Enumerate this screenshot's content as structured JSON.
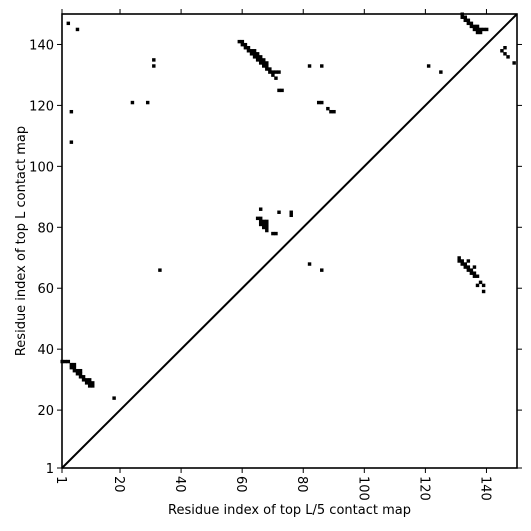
{
  "chart_data": {
    "type": "heatmap",
    "xlabel": "Residue index of top L/5 contact map",
    "ylabel": "Residue index of top L contact map",
    "xlim": [
      1,
      150
    ],
    "ylim": [
      1,
      150
    ],
    "x_ticks": [
      1,
      20,
      40,
      60,
      80,
      100,
      120,
      140
    ],
    "y_ticks": [
      1,
      20,
      40,
      60,
      80,
      100,
      120,
      140
    ],
    "diagonal": true,
    "grid": false,
    "colors": {
      "contact": "#000000",
      "background": "#ffffff",
      "frame": "#000000"
    },
    "contacts": [
      [
        1,
        36
      ],
      [
        2,
        36
      ],
      [
        3,
        36
      ],
      [
        4,
        35
      ],
      [
        4,
        34
      ],
      [
        5,
        35
      ],
      [
        5,
        34
      ],
      [
        5,
        33
      ],
      [
        6,
        33
      ],
      [
        6,
        32
      ],
      [
        7,
        33
      ],
      [
        7,
        32
      ],
      [
        7,
        31
      ],
      [
        8,
        31
      ],
      [
        8,
        30
      ],
      [
        9,
        30
      ],
      [
        9,
        29
      ],
      [
        10,
        30
      ],
      [
        10,
        29
      ],
      [
        10,
        28
      ],
      [
        11,
        29
      ],
      [
        11,
        28
      ],
      [
        3,
        147
      ],
      [
        4,
        118
      ],
      [
        4,
        108
      ],
      [
        6,
        145
      ],
      [
        18,
        24
      ],
      [
        24,
        121
      ],
      [
        29,
        121
      ],
      [
        31,
        135
      ],
      [
        31,
        133
      ],
      [
        33,
        66
      ],
      [
        59,
        141
      ],
      [
        60,
        141
      ],
      [
        60,
        140
      ],
      [
        61,
        140
      ],
      [
        61,
        139
      ],
      [
        62,
        139
      ],
      [
        62,
        138
      ],
      [
        63,
        138
      ],
      [
        63,
        137
      ],
      [
        64,
        138
      ],
      [
        64,
        137
      ],
      [
        64,
        136
      ],
      [
        65,
        137
      ],
      [
        65,
        136
      ],
      [
        65,
        135
      ],
      [
        66,
        136
      ],
      [
        66,
        135
      ],
      [
        66,
        134
      ],
      [
        67,
        135
      ],
      [
        67,
        134
      ],
      [
        67,
        133
      ],
      [
        68,
        134
      ],
      [
        68,
        133
      ],
      [
        68,
        132
      ],
      [
        69,
        132
      ],
      [
        69,
        131
      ],
      [
        70,
        131
      ],
      [
        70,
        130
      ],
      [
        71,
        131
      ],
      [
        71,
        129
      ],
      [
        72,
        131
      ],
      [
        72,
        125
      ],
      [
        73,
        125
      ],
      [
        65,
        83
      ],
      [
        66,
        83
      ],
      [
        66,
        82
      ],
      [
        66,
        81
      ],
      [
        67,
        82
      ],
      [
        67,
        81
      ],
      [
        67,
        80
      ],
      [
        68,
        82
      ],
      [
        68,
        81
      ],
      [
        68,
        80
      ],
      [
        68,
        79
      ],
      [
        66,
        86
      ],
      [
        70,
        78
      ],
      [
        71,
        78
      ],
      [
        72,
        85
      ],
      [
        76,
        85
      ],
      [
        76,
        84
      ],
      [
        82,
        133
      ],
      [
        82,
        68
      ],
      [
        85,
        121
      ],
      [
        86,
        121
      ],
      [
        86,
        133
      ],
      [
        86,
        66
      ],
      [
        88,
        119
      ],
      [
        89,
        118
      ],
      [
        90,
        118
      ],
      [
        121,
        133
      ],
      [
        125,
        131
      ],
      [
        132,
        150
      ],
      [
        132,
        149
      ],
      [
        133,
        149
      ],
      [
        133,
        148
      ],
      [
        134,
        148
      ],
      [
        134,
        147
      ],
      [
        135,
        147
      ],
      [
        135,
        146
      ],
      [
        136,
        146
      ],
      [
        136,
        145
      ],
      [
        137,
        146
      ],
      [
        137,
        145
      ],
      [
        137,
        144
      ],
      [
        138,
        145
      ],
      [
        138,
        144
      ],
      [
        139,
        145
      ],
      [
        140,
        145
      ],
      [
        131,
        70
      ],
      [
        131,
        69
      ],
      [
        132,
        69
      ],
      [
        132,
        68
      ],
      [
        133,
        68
      ],
      [
        133,
        67
      ],
      [
        134,
        69
      ],
      [
        134,
        67
      ],
      [
        134,
        66
      ],
      [
        135,
        66
      ],
      [
        135,
        65
      ],
      [
        136,
        67
      ],
      [
        136,
        65
      ],
      [
        136,
        64
      ],
      [
        137,
        64
      ],
      [
        137,
        61
      ],
      [
        138,
        62
      ],
      [
        139,
        61
      ],
      [
        139,
        59
      ],
      [
        145,
        138
      ],
      [
        146,
        139
      ],
      [
        146,
        137
      ],
      [
        147,
        136
      ],
      [
        149,
        134
      ]
    ]
  }
}
